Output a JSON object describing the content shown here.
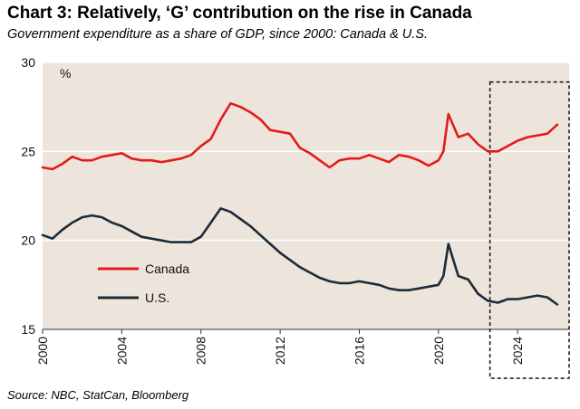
{
  "header": {
    "title": "Chart 3: Relatively, ‘G’ contribution on the rise in Canada",
    "subtitle": "Government expenditure as a share of GDP, since 2000: Canada & U.S.",
    "source": "Source: NBC, StatCan, Bloomberg"
  },
  "chart_data": {
    "type": "line",
    "title": "Chart 3: Relatively, ‘G’ contribution on the rise in Canada",
    "subtitle": "Government expenditure as a share of GDP, since 2000: Canada & U.S.",
    "unit_label": "%",
    "xlabel": "",
    "ylabel": "%",
    "xlim": [
      2000,
      2026.6
    ],
    "ylim": [
      15,
      30
    ],
    "xticks": [
      2000,
      2004,
      2008,
      2012,
      2016,
      2020,
      2024
    ],
    "xtick_labels": [
      "2000",
      "2004",
      "2008",
      "2012",
      "2016",
      "2020",
      "2024"
    ],
    "yticks": [
      15,
      20,
      25,
      30
    ],
    "ytick_labels": [
      "15",
      "20",
      "25",
      "30"
    ],
    "grid": "horizontal",
    "legend_position": "center-left",
    "highlight_box": {
      "x_range": [
        2022.6,
        2026.6
      ],
      "y_range": [
        15,
        28.9
      ],
      "style": "dashed"
    },
    "series": [
      {
        "name": "Canada",
        "color": "#e31a1c",
        "x": [
          2000.0,
          2000.5,
          2001.0,
          2001.5,
          2002.0,
          2002.5,
          2003.0,
          2003.5,
          2004.0,
          2004.5,
          2005.0,
          2005.5,
          2006.0,
          2006.5,
          2007.0,
          2007.5,
          2008.0,
          2008.5,
          2009.0,
          2009.5,
          2010.0,
          2010.5,
          2011.0,
          2011.5,
          2012.0,
          2012.5,
          2013.0,
          2013.5,
          2014.0,
          2014.5,
          2015.0,
          2015.5,
          2016.0,
          2016.5,
          2017.0,
          2017.5,
          2018.0,
          2018.5,
          2019.0,
          2019.5,
          2020.0,
          2020.25,
          2020.5,
          2021.0,
          2021.5,
          2022.0,
          2022.5,
          2023.0,
          2023.5,
          2024.0,
          2024.5,
          2025.0,
          2025.5,
          2026.0
        ],
        "values": [
          24.1,
          24.0,
          24.3,
          24.7,
          24.5,
          24.5,
          24.7,
          24.8,
          24.9,
          24.6,
          24.5,
          24.5,
          24.4,
          24.5,
          24.6,
          24.8,
          25.3,
          25.7,
          26.8,
          27.7,
          27.5,
          27.2,
          26.8,
          26.2,
          26.1,
          26.0,
          25.2,
          24.9,
          24.5,
          24.1,
          24.5,
          24.6,
          24.6,
          24.8,
          24.6,
          24.4,
          24.8,
          24.7,
          24.5,
          24.2,
          24.5,
          25.0,
          27.1,
          25.8,
          26.0,
          25.4,
          25.0,
          25.0,
          25.3,
          25.6,
          25.8,
          25.9,
          26.0,
          26.5
        ],
        "style": "solid"
      },
      {
        "name": "U.S.",
        "color": "#1c2b39",
        "x": [
          2000.0,
          2000.5,
          2001.0,
          2001.5,
          2002.0,
          2002.5,
          2003.0,
          2003.5,
          2004.0,
          2004.5,
          2005.0,
          2005.5,
          2006.0,
          2006.5,
          2007.0,
          2007.5,
          2008.0,
          2008.5,
          2009.0,
          2009.5,
          2010.0,
          2010.5,
          2011.0,
          2011.5,
          2012.0,
          2012.5,
          2013.0,
          2013.5,
          2014.0,
          2014.5,
          2015.0,
          2015.5,
          2016.0,
          2016.5,
          2017.0,
          2017.5,
          2018.0,
          2018.5,
          2019.0,
          2019.5,
          2020.0,
          2020.25,
          2020.5,
          2021.0,
          2021.5,
          2022.0,
          2022.5,
          2023.0,
          2023.5,
          2024.0,
          2024.5,
          2025.0,
          2025.5,
          2026.0
        ],
        "values": [
          20.3,
          20.1,
          20.6,
          21.0,
          21.3,
          21.4,
          21.3,
          21.0,
          20.8,
          20.5,
          20.2,
          20.1,
          20.0,
          19.9,
          19.9,
          19.9,
          20.2,
          21.0,
          21.8,
          21.6,
          21.2,
          20.8,
          20.3,
          19.8,
          19.3,
          18.9,
          18.5,
          18.2,
          17.9,
          17.7,
          17.6,
          17.6,
          17.7,
          17.6,
          17.5,
          17.3,
          17.2,
          17.2,
          17.3,
          17.4,
          17.5,
          18.0,
          19.8,
          18.0,
          17.8,
          17.0,
          16.6,
          16.5,
          16.7,
          16.7,
          16.8,
          16.9,
          16.8,
          16.4
        ],
        "style": "solid"
      }
    ]
  }
}
